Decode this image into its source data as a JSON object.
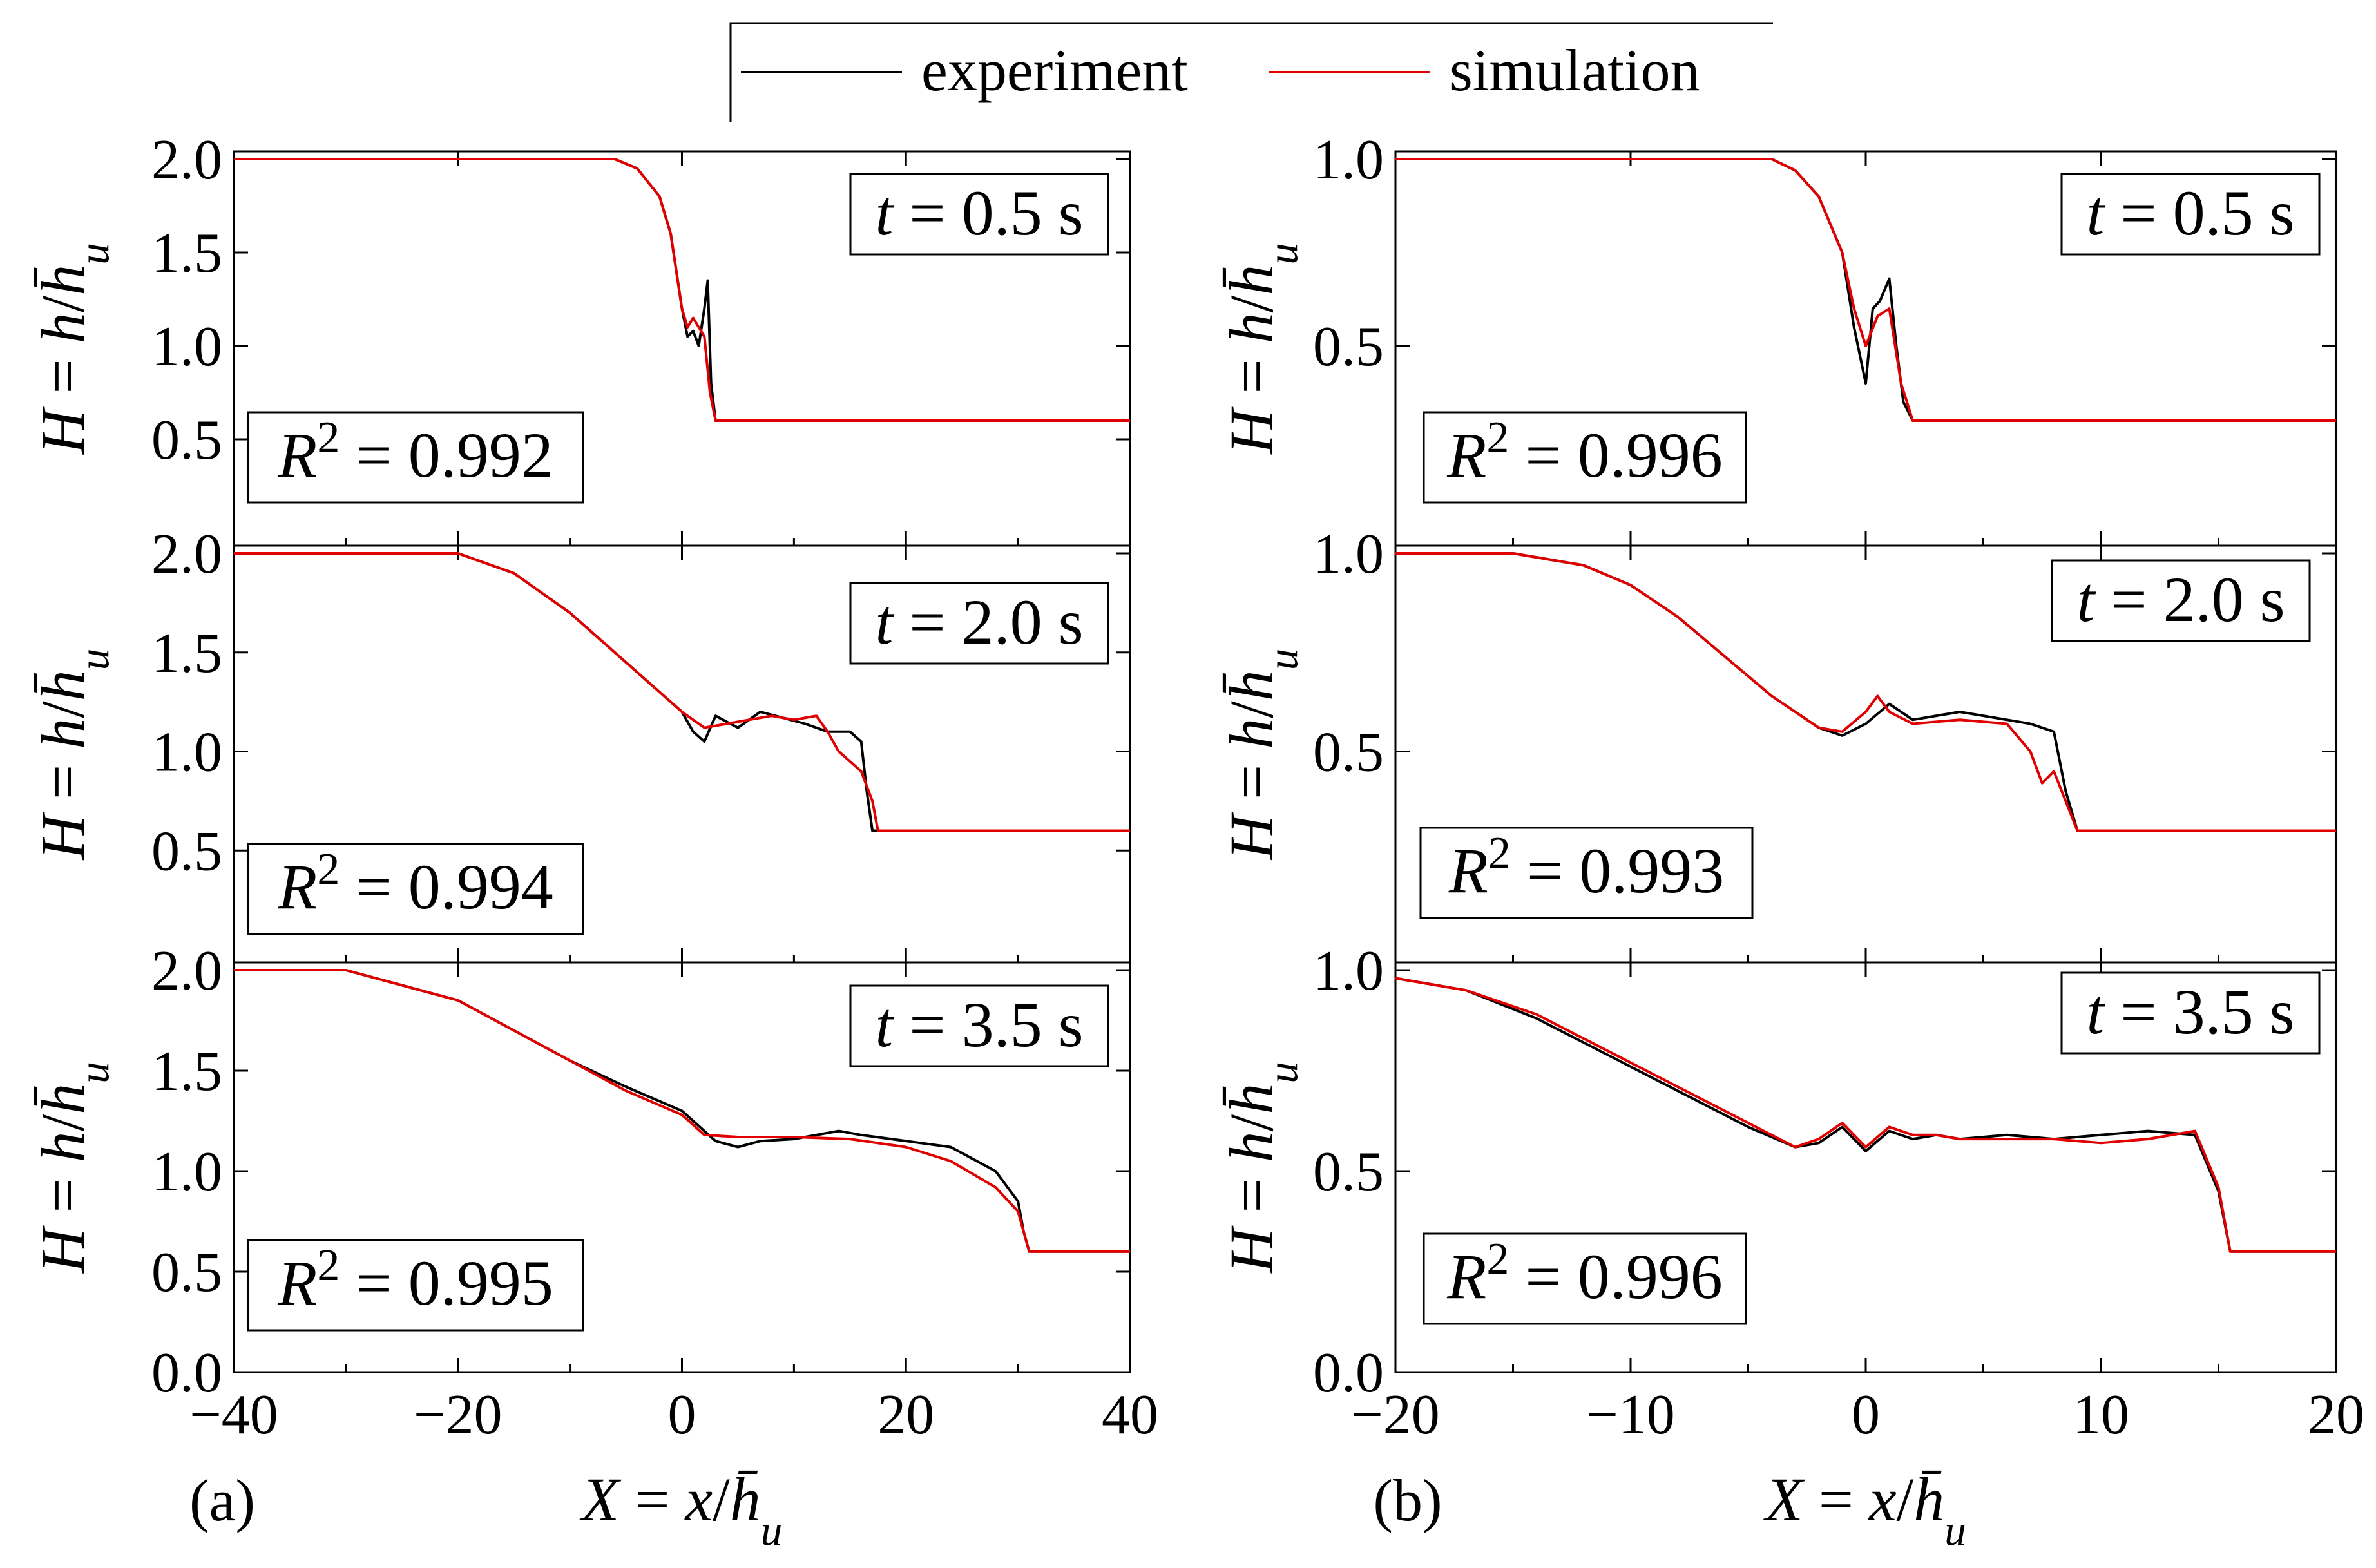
{
  "legend": {
    "items": [
      {
        "label": "experiment",
        "color": "#000000"
      },
      {
        "label": "simulation",
        "color": "#e00000"
      }
    ]
  },
  "colors": {
    "experiment": "#000000",
    "simulation": "#e00000",
    "axes": "#000000"
  },
  "chart_data": [
    {
      "type": "line",
      "panel": "(a)",
      "stacked_subplots": 3,
      "xlim": [
        -40,
        40
      ],
      "xticks": [
        "−40",
        "−20",
        "0",
        "20",
        "40"
      ],
      "xlabel": "X = x/h̄u",
      "ylabel": "H = h/h̄u",
      "yticks": [
        "0.0",
        "0.5",
        "1.0",
        "1.5",
        "2.0"
      ],
      "subplots": [
        {
          "time_label": "t = 0.5 s",
          "r2_label": "R² = 0.992",
          "ylim": [
            0,
            2.0
          ],
          "yticks_shown": [
            "0.5",
            "1.0",
            "1.5",
            "2.0"
          ],
          "series": [
            {
              "name": "experiment",
              "x": [
                -40,
                -6,
                -4,
                -2,
                -1,
                0,
                0.5,
                1,
                1.5,
                2,
                2.3,
                2.6,
                3,
                40
              ],
              "y": [
                2.0,
                2.0,
                1.95,
                1.8,
                1.6,
                1.2,
                1.05,
                1.08,
                1.0,
                1.2,
                1.35,
                0.8,
                0.6,
                0.6
              ]
            },
            {
              "name": "simulation",
              "x": [
                -40,
                -6,
                -4,
                -2,
                -1,
                0,
                0.5,
                1,
                1.5,
                2,
                2.5,
                3,
                40
              ],
              "y": [
                2.0,
                2.0,
                1.95,
                1.8,
                1.6,
                1.2,
                1.1,
                1.15,
                1.1,
                1.05,
                0.75,
                0.6,
                0.6
              ]
            }
          ]
        },
        {
          "time_label": "t = 2.0 s",
          "r2_label": "R² = 0.994",
          "ylim": [
            0,
            2.0
          ],
          "yticks_shown": [
            "0.5",
            "1.0",
            "1.5",
            "2.0"
          ],
          "series": [
            {
              "name": "experiment",
              "x": [
                -40,
                -20,
                -15,
                -10,
                -5,
                0,
                1,
                2,
                3,
                5,
                7,
                9,
                11,
                13,
                15,
                16,
                16.5,
                17,
                18,
                40
              ],
              "y": [
                2.0,
                2.0,
                1.9,
                1.7,
                1.45,
                1.2,
                1.1,
                1.05,
                1.18,
                1.12,
                1.2,
                1.17,
                1.14,
                1.1,
                1.1,
                1.05,
                0.8,
                0.6,
                0.6,
                0.6
              ]
            },
            {
              "name": "simulation",
              "x": [
                -40,
                -20,
                -15,
                -10,
                -5,
                0,
                2,
                4,
                6,
                8,
                10,
                12,
                13,
                14,
                15,
                16,
                17,
                17.5,
                40
              ],
              "y": [
                2.0,
                2.0,
                1.9,
                1.7,
                1.45,
                1.2,
                1.12,
                1.14,
                1.16,
                1.18,
                1.16,
                1.18,
                1.1,
                1.0,
                0.95,
                0.9,
                0.75,
                0.6,
                0.6
              ]
            }
          ]
        },
        {
          "time_label": "t = 3.5 s",
          "r2_label": "R² = 0.995",
          "ylim": [
            0,
            2.0
          ],
          "yticks_shown": [
            "0.0",
            "0.5",
            "1.0",
            "1.5",
            "2.0"
          ],
          "series": [
            {
              "name": "experiment",
              "x": [
                -40,
                -30,
                -20,
                -10,
                -5,
                0,
                1,
                2,
                3,
                5,
                7,
                10,
                12,
                14,
                16,
                20,
                24,
                28,
                30,
                30.5,
                31,
                40
              ],
              "y": [
                2.0,
                2.0,
                1.85,
                1.55,
                1.42,
                1.3,
                1.25,
                1.2,
                1.15,
                1.12,
                1.15,
                1.16,
                1.18,
                1.2,
                1.18,
                1.15,
                1.12,
                1.0,
                0.85,
                0.7,
                0.6,
                0.6
              ]
            },
            {
              "name": "simulation",
              "x": [
                -40,
                -30,
                -20,
                -10,
                -5,
                0,
                2,
                5,
                10,
                15,
                20,
                24,
                28,
                30,
                30.5,
                31,
                40
              ],
              "y": [
                2.0,
                2.0,
                1.85,
                1.55,
                1.4,
                1.28,
                1.18,
                1.17,
                1.17,
                1.16,
                1.12,
                1.05,
                0.92,
                0.8,
                0.7,
                0.6,
                0.6
              ]
            }
          ]
        }
      ]
    },
    {
      "type": "line",
      "panel": "(b)",
      "stacked_subplots": 3,
      "xlim": [
        -20,
        20
      ],
      "xticks": [
        "−20",
        "−10",
        "0",
        "10",
        "20"
      ],
      "xlabel": "X = x/h̄u",
      "ylabel": "H = h/h̄u",
      "yticks": [
        "0.0",
        "0.5",
        "1.0"
      ],
      "subplots": [
        {
          "time_label": "t = 0.5 s",
          "r2_label": "R² = 0.996",
          "ylim": [
            0.0,
            1.0
          ],
          "yticks_shown": [
            "0.5",
            "1.0"
          ],
          "series": [
            {
              "name": "experiment",
              "x": [
                -20,
                -4,
                -3,
                -2,
                -1,
                -0.5,
                0,
                0.3,
                0.6,
                1,
                1.3,
                1.6,
                2,
                20
              ],
              "y": [
                1.0,
                1.0,
                0.97,
                0.9,
                0.75,
                0.55,
                0.4,
                0.6,
                0.62,
                0.68,
                0.5,
                0.35,
                0.3,
                0.3
              ]
            },
            {
              "name": "simulation",
              "x": [
                -20,
                -4,
                -3,
                -2,
                -1,
                -0.5,
                0,
                0.5,
                1,
                1.5,
                2,
                20
              ],
              "y": [
                1.0,
                1.0,
                0.97,
                0.9,
                0.75,
                0.6,
                0.5,
                0.58,
                0.6,
                0.4,
                0.3,
                0.3
              ]
            }
          ]
        },
        {
          "time_label": "t = 2.0 s",
          "r2_label": "R² = 0.993",
          "ylim": [
            0.0,
            1.0
          ],
          "yticks_shown": [
            "0.5",
            "1.0"
          ],
          "series": [
            {
              "name": "experiment",
              "x": [
                -20,
                -15,
                -12,
                -10,
                -8,
                -6,
                -4,
                -2,
                -1,
                0,
                1,
                2,
                4,
                6,
                7,
                8,
                8.5,
                9,
                20
              ],
              "y": [
                1.0,
                1.0,
                0.97,
                0.92,
                0.84,
                0.74,
                0.64,
                0.56,
                0.54,
                0.57,
                0.62,
                0.58,
                0.6,
                0.58,
                0.57,
                0.55,
                0.4,
                0.3,
                0.3
              ]
            },
            {
              "name": "simulation",
              "x": [
                -20,
                -15,
                -12,
                -10,
                -8,
                -6,
                -4,
                -2,
                -1,
                0,
                0.5,
                1,
                2,
                4,
                6,
                7,
                7.5,
                8,
                9,
                20
              ],
              "y": [
                1.0,
                1.0,
                0.97,
                0.92,
                0.84,
                0.74,
                0.64,
                0.56,
                0.55,
                0.6,
                0.64,
                0.6,
                0.57,
                0.58,
                0.57,
                0.5,
                0.42,
                0.45,
                0.3,
                0.3
              ]
            }
          ]
        },
        {
          "time_label": "t = 3.5 s",
          "r2_label": "R² = 0.996",
          "ylim": [
            0.0,
            1.0
          ],
          "yticks_shown": [
            "0.0",
            "0.5",
            "1.0"
          ],
          "series": [
            {
              "name": "experiment",
              "x": [
                -20,
                -17,
                -14,
                -11,
                -8,
                -5,
                -3,
                -2,
                -1,
                0,
                1,
                2,
                3,
                4,
                6,
                8,
                10,
                12,
                14,
                15,
                15.5,
                20
              ],
              "y": [
                0.98,
                0.95,
                0.88,
                0.79,
                0.7,
                0.61,
                0.56,
                0.57,
                0.61,
                0.55,
                0.6,
                0.58,
                0.59,
                0.58,
                0.59,
                0.58,
                0.59,
                0.6,
                0.59,
                0.45,
                0.3,
                0.3
              ]
            },
            {
              "name": "simulation",
              "x": [
                -20,
                -17,
                -14,
                -11,
                -8,
                -5,
                -3,
                -2,
                -1,
                0,
                1,
                2,
                3,
                4,
                6,
                8,
                10,
                12,
                14,
                15,
                15.5,
                20
              ],
              "y": [
                0.98,
                0.95,
                0.89,
                0.8,
                0.71,
                0.62,
                0.56,
                0.58,
                0.62,
                0.56,
                0.61,
                0.59,
                0.59,
                0.58,
                0.58,
                0.58,
                0.57,
                0.58,
                0.6,
                0.46,
                0.3,
                0.3
              ]
            }
          ]
        }
      ]
    }
  ]
}
